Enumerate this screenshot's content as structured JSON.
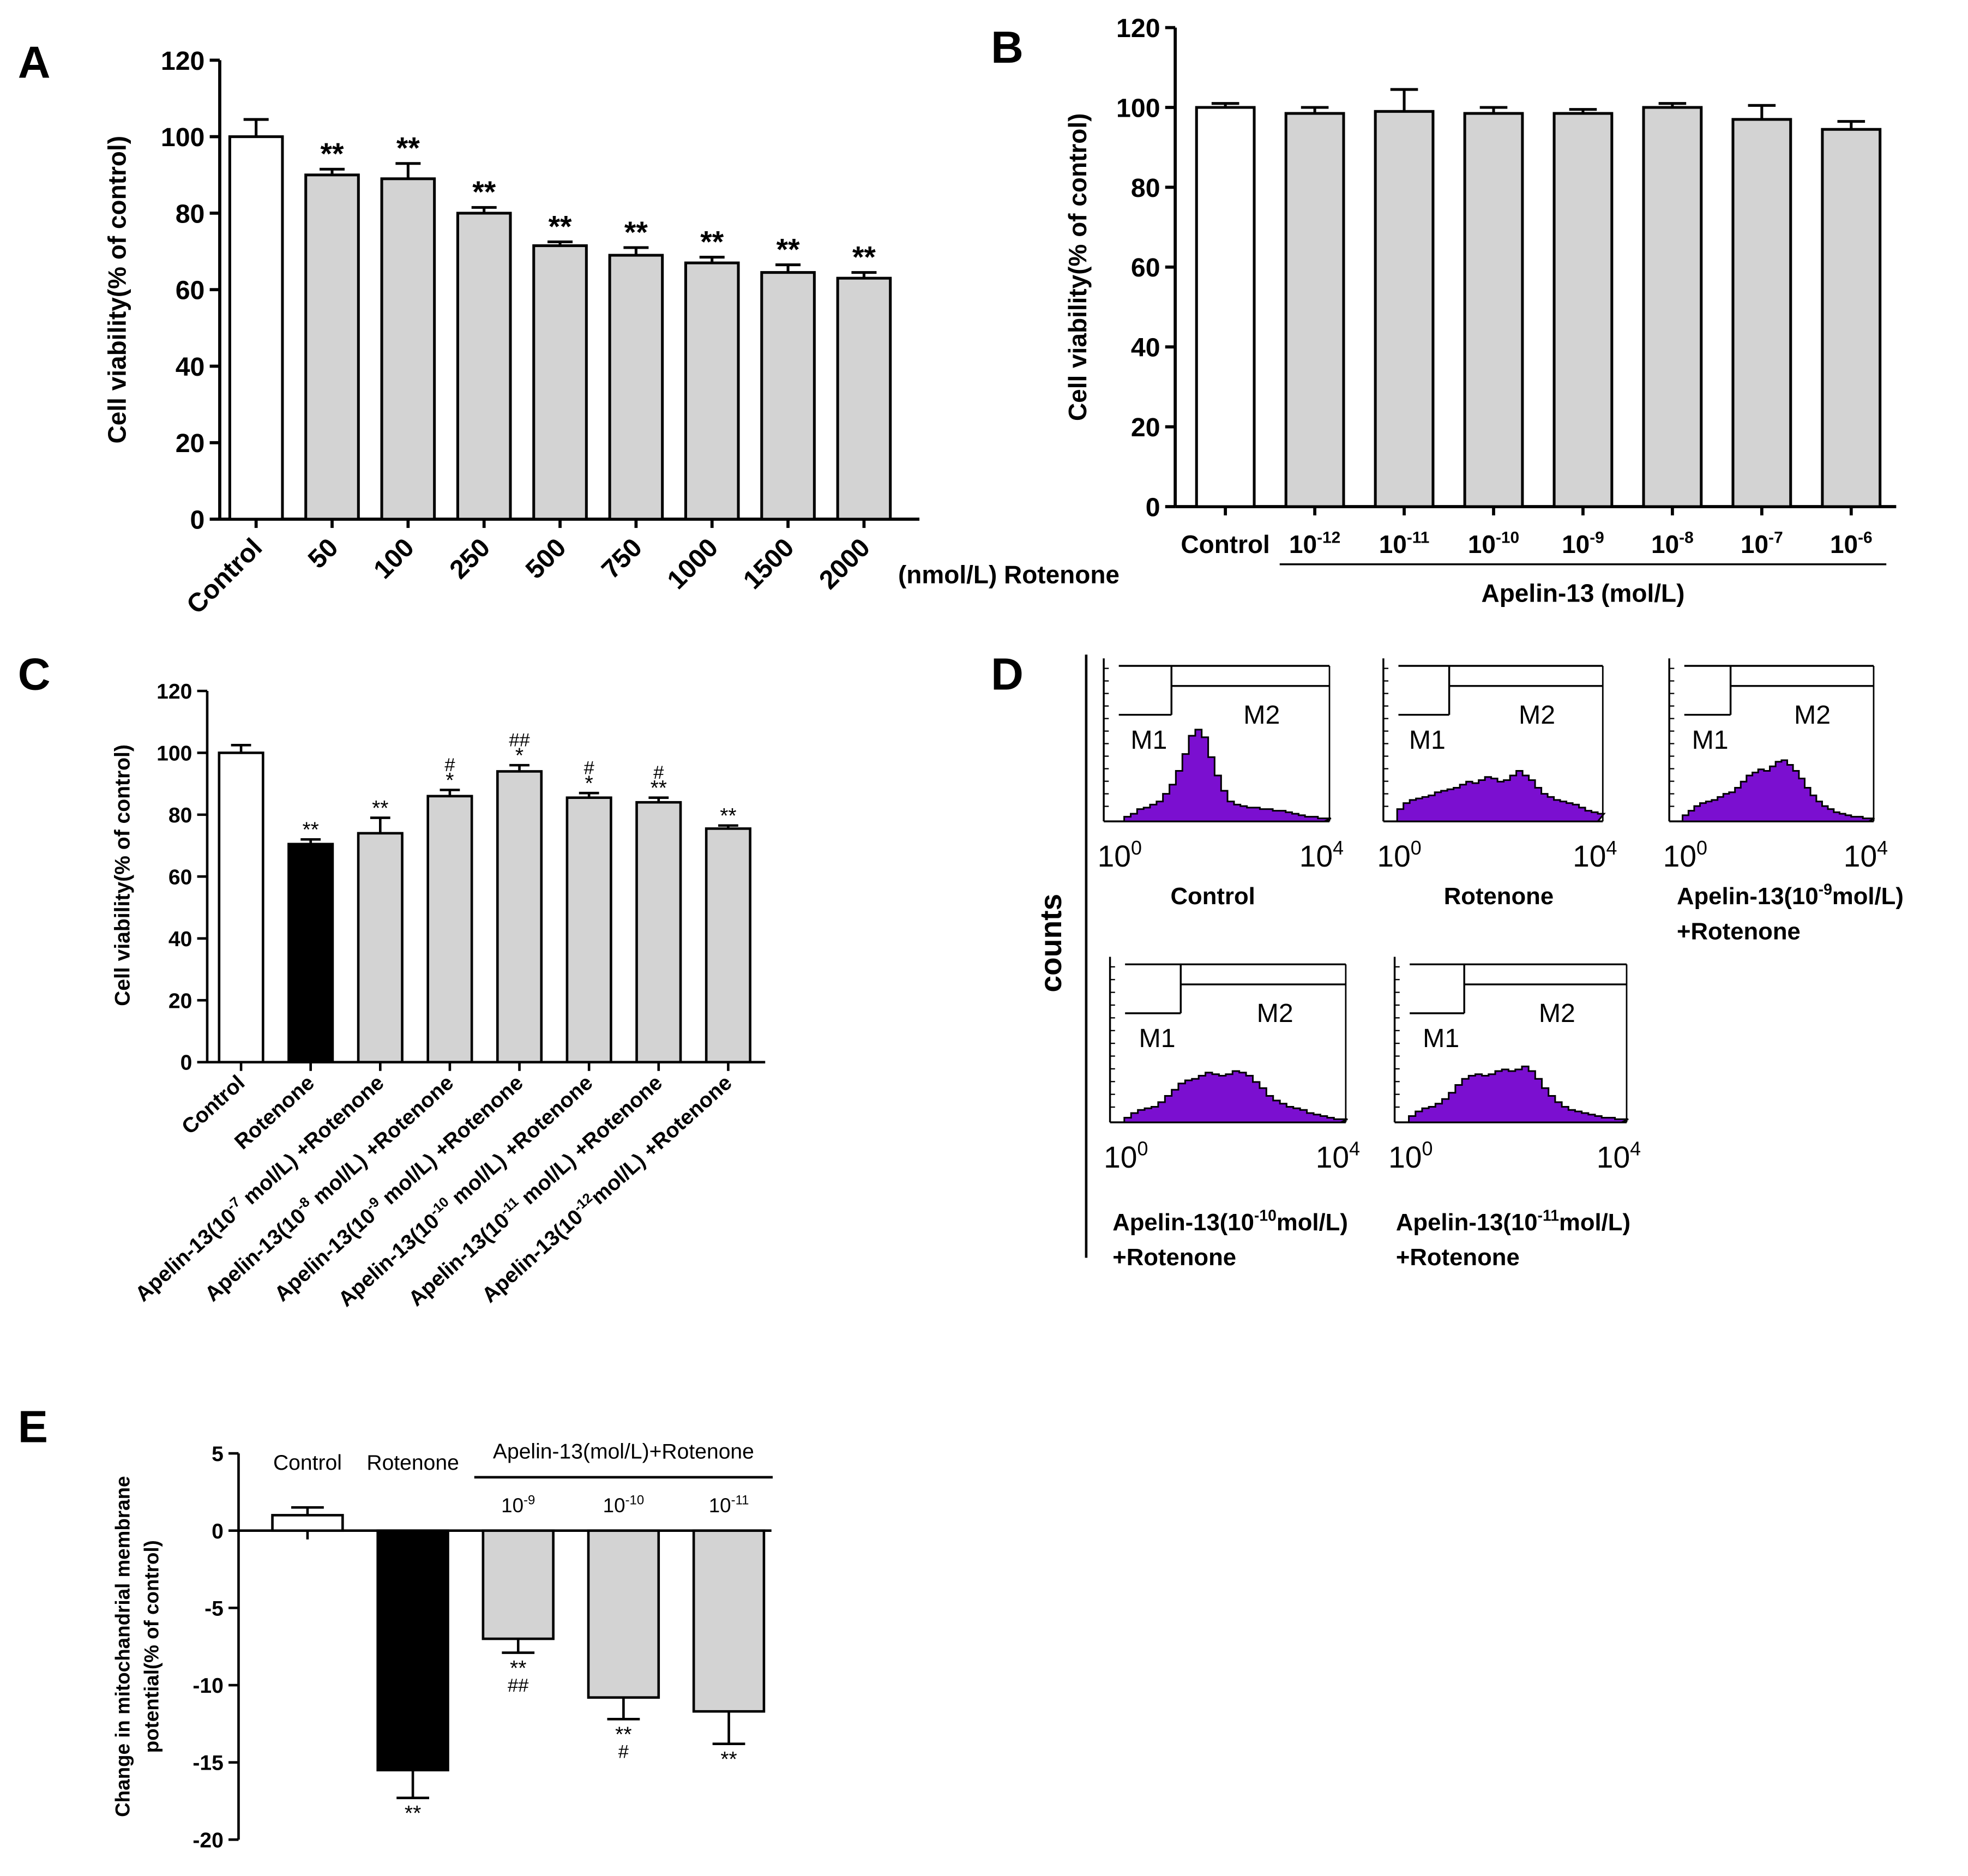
{
  "colors": {
    "white_bar": "#ffffff",
    "gray_bar": "#d3d3d3",
    "black_bar": "#000000",
    "histogram": "#7b0fd0"
  },
  "chart_data": [
    {
      "panel": "A",
      "type": "bar",
      "ylabel": "Cell viability(% of control)",
      "xlabel": "(nmol/L) Rotenone",
      "ylim": [
        0,
        120
      ],
      "yticks": [
        0,
        20,
        40,
        60,
        80,
        100,
        120
      ],
      "categories": [
        "Control",
        "50",
        "100",
        "250",
        "500",
        "750",
        "1000",
        "1500",
        "2000"
      ],
      "values": [
        100,
        90,
        89,
        80,
        71.5,
        69,
        67,
        64.5,
        63
      ],
      "errors": [
        4.5,
        1.5,
        4,
        1.5,
        1,
        2,
        1.5,
        2,
        1.5
      ],
      "bar_styles": [
        "white",
        "gray",
        "gray",
        "gray",
        "gray",
        "gray",
        "gray",
        "gray",
        "gray"
      ],
      "annotations": [
        "",
        "**",
        "**",
        "**",
        "**",
        "**",
        "**",
        "**",
        "**"
      ]
    },
    {
      "panel": "B",
      "type": "bar",
      "ylabel": "Cell viability(% of control)",
      "group_label": "Apelin-13 (mol/L)",
      "ylim": [
        0,
        120
      ],
      "yticks": [
        0,
        20,
        40,
        60,
        80,
        100,
        120
      ],
      "categories": [
        "Control",
        "10-12",
        "10-11",
        "10-10",
        "10-9",
        "10-8",
        "10-7",
        "10-6"
      ],
      "tick_labels": [
        {
          "base": "Control",
          "sup": ""
        },
        {
          "base": "10",
          "sup": "-12"
        },
        {
          "base": "10",
          "sup": "-11"
        },
        {
          "base": "10",
          "sup": "-10"
        },
        {
          "base": "10",
          "sup": "-9"
        },
        {
          "base": "10",
          "sup": "-8"
        },
        {
          "base": "10",
          "sup": "-7"
        },
        {
          "base": "10",
          "sup": "-6"
        }
      ],
      "values": [
        100,
        98.5,
        99,
        98.5,
        98.5,
        100,
        97,
        94.5
      ],
      "errors": [
        1,
        1.5,
        5.5,
        1.5,
        1,
        1,
        3.5,
        2
      ],
      "bar_styles": [
        "white",
        "gray",
        "gray",
        "gray",
        "gray",
        "gray",
        "gray",
        "gray"
      ]
    },
    {
      "panel": "C",
      "type": "bar",
      "ylabel": "Cell viability(% of control)",
      "ylim": [
        0,
        120
      ],
      "yticks": [
        0,
        20,
        40,
        60,
        80,
        100,
        120
      ],
      "categories": [
        "Control",
        "Rotenone",
        "Apelin-13(10-7 mol/L) +Rotenone",
        "Apelin-13(10-8 mol/L) +Rotenone",
        "Apelin-13(10-9 mol/L) +Rotenone",
        "Apelin-13(10-10 mol/L) +Rotenone",
        "Apelin-13(10-11 mol/L) +Rotenone",
        "Apelin-13(10-12 mol/L) +Rotenone"
      ],
      "tick_labels": [
        {
          "pre": "Control",
          "sup": "",
          "post": ""
        },
        {
          "pre": "Rotenone",
          "sup": "",
          "post": ""
        },
        {
          "pre": "Apelin-13(10",
          "sup": "-7",
          "post": " mol/L) +Rotenone"
        },
        {
          "pre": "Apelin-13(10",
          "sup": "-8",
          "post": " mol/L) +Rotenone"
        },
        {
          "pre": "Apelin-13(10",
          "sup": "-9",
          "post": " mol/L) +Rotenone"
        },
        {
          "pre": "Apelin-13(10",
          "sup": "-10",
          "post": " mol/L) +Rotenone"
        },
        {
          "pre": "Apelin-13(10",
          "sup": "-11",
          "post": " mol/L) +Rotenone"
        },
        {
          "pre": "Apelin-13(10",
          "sup": "-12",
          "post": "mol/L) +Rotenone"
        }
      ],
      "values": [
        100,
        70.5,
        74,
        86,
        94,
        85.5,
        84,
        75.5
      ],
      "errors": [
        2.5,
        1.5,
        5,
        2,
        2,
        1.5,
        1.5,
        1
      ],
      "bar_styles": [
        "white",
        "black",
        "gray",
        "gray",
        "gray",
        "gray",
        "gray",
        "gray"
      ],
      "annotations_hash": [
        "",
        "",
        "",
        "#",
        "##",
        "#",
        "#",
        ""
      ],
      "annotations_star": [
        "",
        "**",
        "**",
        "*",
        "*",
        "*",
        "**",
        "**"
      ]
    },
    {
      "panel": "E",
      "type": "bar",
      "ylabel_line1": "Change in mitochandrial membrane",
      "ylabel_line2": "potential(% of control)",
      "ylim": [
        -20,
        5
      ],
      "yticks": [
        -20,
        -15,
        -10,
        -5,
        0,
        5
      ],
      "categories": [
        "Control",
        "Rotenone",
        "10-9",
        "10-10",
        "10-11"
      ],
      "top_labels": [
        {
          "base": "Control",
          "sup": ""
        },
        {
          "base": "Rotenone",
          "sup": ""
        },
        {
          "base": "10",
          "sup": "-9"
        },
        {
          "base": "10",
          "sup": "-10"
        },
        {
          "base": "10",
          "sup": "-11"
        }
      ],
      "group_label": "Apelin-13(mol/L)+Rotenone",
      "values": [
        1,
        -15.5,
        -7,
        -10.8,
        -11.7
      ],
      "errors": [
        0.5,
        1.8,
        0.9,
        1.4,
        2.1
      ],
      "bar_styles": [
        "white",
        "black",
        "gray",
        "gray",
        "gray"
      ],
      "annotations_star": [
        "",
        "**",
        "**",
        "**",
        "**"
      ],
      "annotations_hash": [
        "",
        "",
        "##",
        "#",
        ""
      ]
    },
    {
      "panel": "D",
      "type": "histogram",
      "ylabel": "counts",
      "x_axis": {
        "min_base": "10",
        "min_sup": "0",
        "max_base": "10",
        "max_sup": "4"
      },
      "gates": [
        "M1",
        "M2"
      ],
      "plots": [
        {
          "label_pre": "Control",
          "label_sup": "",
          "label_post": "",
          "label_line2": "",
          "profile": [
            0,
            0,
            0.03,
            0.05,
            0.08,
            0.09,
            0.11,
            0.13,
            0.18,
            0.24,
            0.33,
            0.44,
            0.56,
            0.6,
            0.55,
            0.42,
            0.3,
            0.2,
            0.13,
            0.11,
            0.1,
            0.09,
            0.09,
            0.08,
            0.08,
            0.07,
            0.07,
            0.06,
            0.05,
            0.04,
            0.03,
            0.03,
            0.02,
            0.02
          ]
        },
        {
          "label_pre": "Rotenone",
          "label_sup": "",
          "label_post": "",
          "label_line2": "",
          "profile": [
            0,
            0.08,
            0.12,
            0.14,
            0.15,
            0.16,
            0.17,
            0.19,
            0.2,
            0.21,
            0.22,
            0.24,
            0.26,
            0.25,
            0.27,
            0.29,
            0.28,
            0.26,
            0.27,
            0.3,
            0.33,
            0.3,
            0.27,
            0.22,
            0.18,
            0.16,
            0.14,
            0.13,
            0.12,
            0.11,
            0.09,
            0.07,
            0.06,
            0.05
          ]
        },
        {
          "label_pre": "Apelin-13(10",
          "label_sup": "-9",
          "label_post": "mol/L)",
          "label_line2": "+Rotenone",
          "profile": [
            0,
            0.04,
            0.07,
            0.1,
            0.12,
            0.13,
            0.14,
            0.16,
            0.18,
            0.19,
            0.22,
            0.26,
            0.3,
            0.32,
            0.34,
            0.33,
            0.36,
            0.39,
            0.4,
            0.37,
            0.33,
            0.28,
            0.22,
            0.17,
            0.13,
            0.1,
            0.08,
            0.06,
            0.05,
            0.04,
            0.03,
            0.03,
            0.02,
            0.02
          ]
        },
        {
          "label_pre": "Apelin-13(10",
          "label_sup": "-10",
          "label_post": "mol/L)",
          "label_line2": "+Rotenone",
          "profile": [
            0,
            0.03,
            0.06,
            0.08,
            0.09,
            0.1,
            0.13,
            0.17,
            0.21,
            0.25,
            0.27,
            0.28,
            0.3,
            0.32,
            0.31,
            0.3,
            0.31,
            0.33,
            0.32,
            0.3,
            0.26,
            0.22,
            0.17,
            0.14,
            0.12,
            0.1,
            0.09,
            0.08,
            0.06,
            0.05,
            0.04,
            0.03,
            0.02,
            0.02
          ]
        },
        {
          "label_pre": "Apelin-13(10",
          "label_sup": "-11",
          "label_post": "mol/L)",
          "label_line2": "+Rotenone",
          "profile": [
            0,
            0.04,
            0.07,
            0.09,
            0.1,
            0.12,
            0.15,
            0.19,
            0.24,
            0.28,
            0.3,
            0.31,
            0.3,
            0.31,
            0.33,
            0.34,
            0.33,
            0.34,
            0.36,
            0.33,
            0.28,
            0.22,
            0.17,
            0.13,
            0.1,
            0.08,
            0.07,
            0.06,
            0.05,
            0.04,
            0.03,
            0.03,
            0.02,
            0.02
          ]
        }
      ]
    }
  ],
  "panel_labels": [
    "A",
    "B",
    "C",
    "D",
    "E"
  ]
}
